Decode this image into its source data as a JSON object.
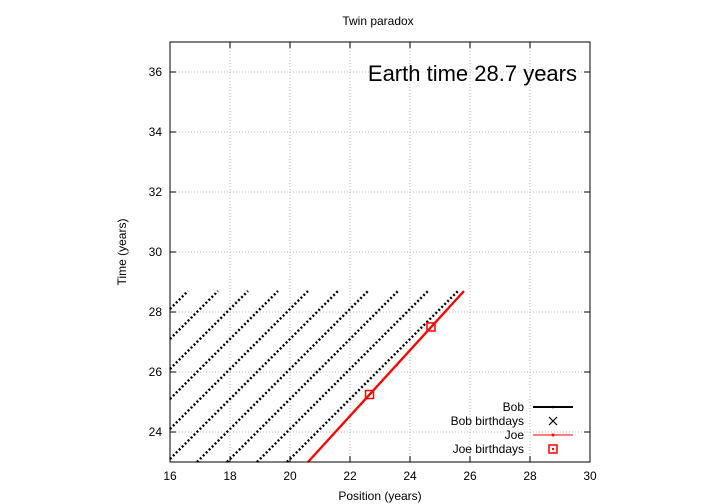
{
  "chart_data": {
    "type": "scatter",
    "title": "Twin paradox",
    "xlabel": "Position (years)",
    "ylabel": "Time (years)",
    "xlim": [
      16,
      30
    ],
    "ylim": [
      23,
      37
    ],
    "xticks": [
      "16",
      "18",
      "20",
      "22",
      "24",
      "26",
      "28",
      "30"
    ],
    "yticks": [
      "24",
      "26",
      "28",
      "30",
      "32",
      "34",
      "36"
    ],
    "grid": true,
    "legend_position": "bottom-right",
    "annotation": "Earth time 28.7 years",
    "colors": {
      "bob": "#000000",
      "joe": "#ff0000",
      "grid": "#bbbbbb"
    },
    "series": [
      {
        "name": "Bob",
        "style": "dotted diagonal lines of slope 1, one per departure, ending at earth time 28.7",
        "segments": [
          {
            "x": [
              16.0,
              16.6
            ],
            "y": [
              28.1,
              28.7
            ]
          },
          {
            "x": [
              16.0,
              17.6
            ],
            "y": [
              27.1,
              28.7
            ]
          },
          {
            "x": [
              16.0,
              18.6
            ],
            "y": [
              26.1,
              28.7
            ]
          },
          {
            "x": [
              16.0,
              19.6
            ],
            "y": [
              25.1,
              28.7
            ]
          },
          {
            "x": [
              16.0,
              20.6
            ],
            "y": [
              24.1,
              28.7
            ]
          },
          {
            "x": [
              16.0,
              21.6
            ],
            "y": [
              23.1,
              28.7
            ]
          },
          {
            "x": [
              16.9,
              22.6
            ],
            "y": [
              23.0,
              28.7
            ]
          },
          {
            "x": [
              17.9,
              23.6
            ],
            "y": [
              23.0,
              28.7
            ]
          },
          {
            "x": [
              18.9,
              24.6
            ],
            "y": [
              23.0,
              28.7
            ]
          },
          {
            "x": [
              19.9,
              25.6
            ],
            "y": [
              23.0,
              28.7
            ]
          }
        ]
      },
      {
        "name": "Bob birthdays",
        "x": [],
        "y": []
      },
      {
        "name": "Joe",
        "x": [
          20.6,
          25.8
        ],
        "y": [
          23.0,
          28.7
        ]
      },
      {
        "name": "Joe birthdays",
        "x": [
          22.65,
          24.7
        ],
        "y": [
          25.25,
          27.5
        ]
      }
    ]
  }
}
